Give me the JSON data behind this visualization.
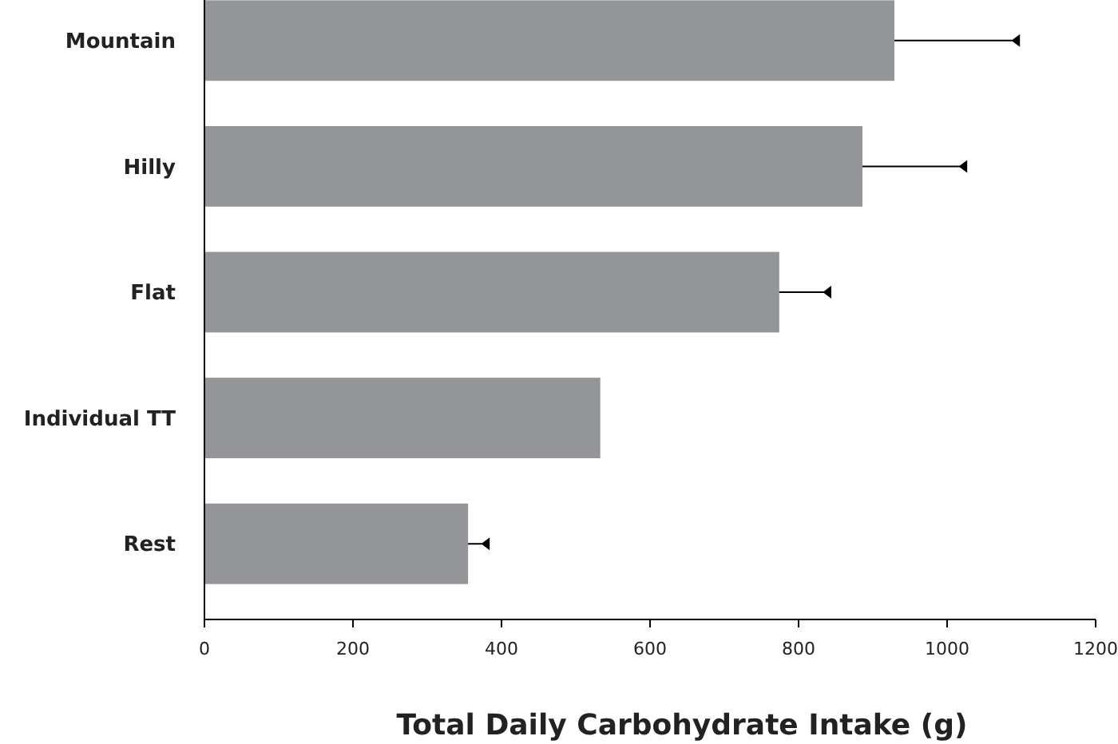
{
  "chart_data": {
    "type": "bar",
    "orientation": "horizontal",
    "xlabel": "Total Daily Carbohydrate Intake (g)",
    "categories": [
      "Mountain",
      "Hilly",
      "Flat",
      "Individual TT",
      "Rest"
    ],
    "values": [
      929,
      886,
      774,
      533,
      355
    ],
    "errors": [
      [
        929,
        1097
      ],
      [
        886,
        1026
      ],
      [
        774,
        843
      ],
      null,
      [
        355,
        383
      ]
    ],
    "color": "#939598",
    "xlim": [
      0,
      1200
    ],
    "xticks": [
      0,
      200,
      400,
      600,
      800,
      1000,
      1200
    ],
    "grid": false
  }
}
